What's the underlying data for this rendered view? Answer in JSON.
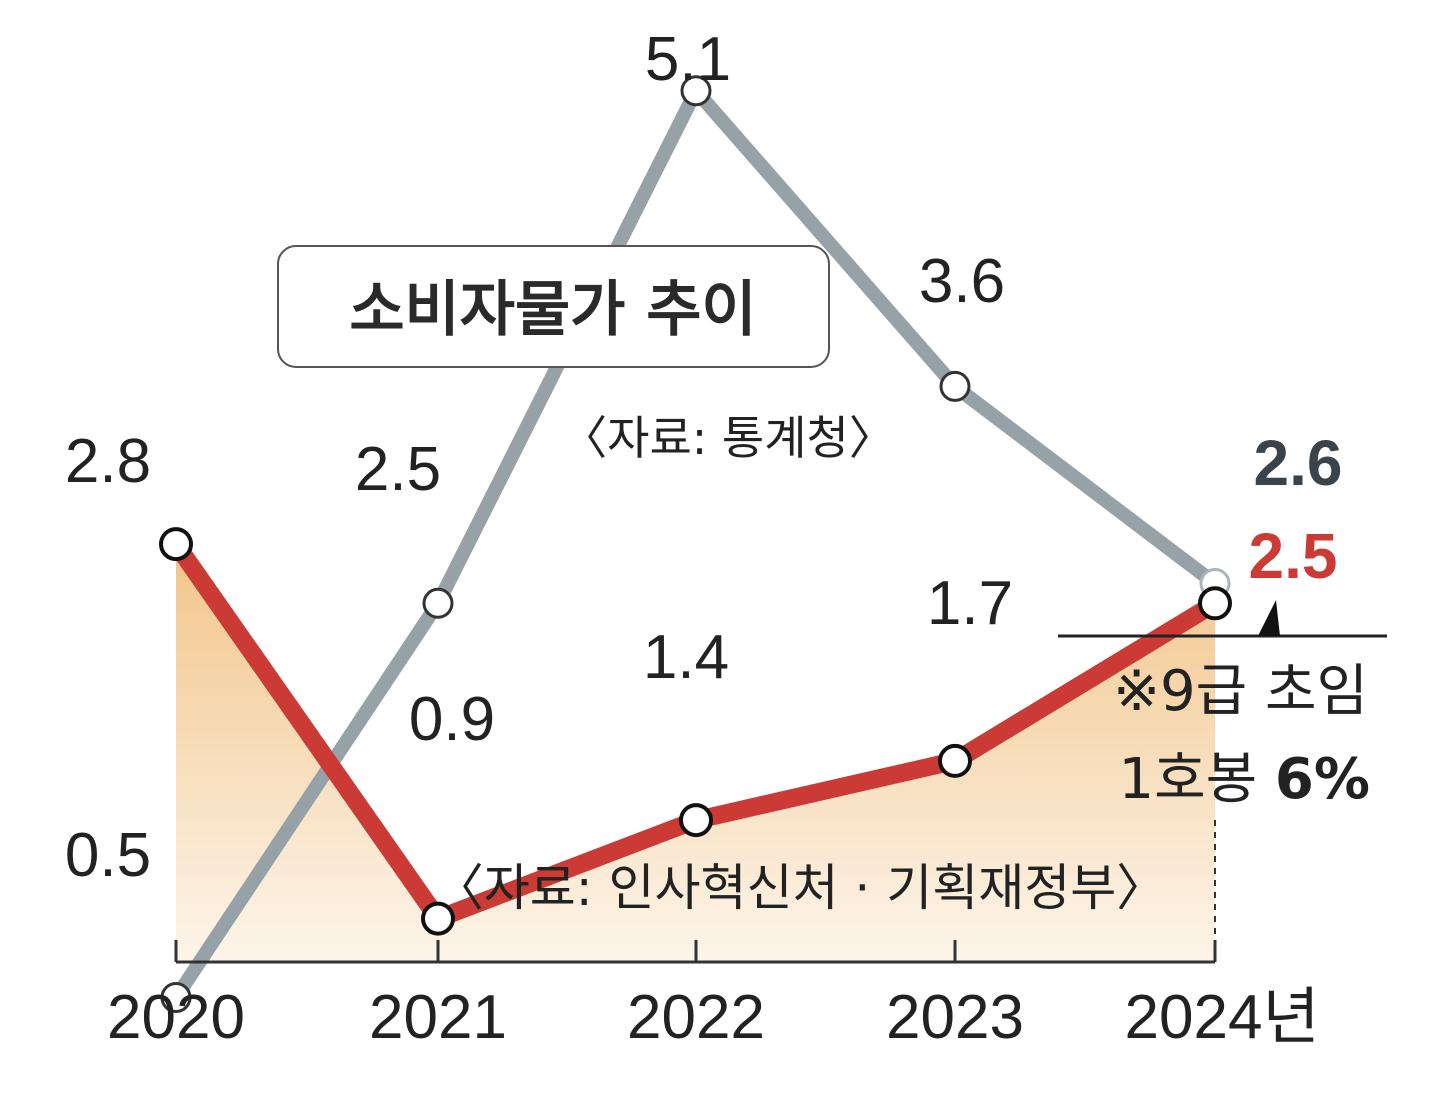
{
  "chart_data": {
    "type": "line",
    "categories": [
      "2020",
      "2021",
      "2022",
      "2023",
      "2024"
    ],
    "x_unit": "년",
    "ylim": [
      0,
      5.4
    ],
    "grid": false,
    "series": [
      {
        "values": [
          0.5,
          2.5,
          5.1,
          3.6,
          2.6
        ],
        "labels": [
          "0.5",
          "2.5",
          "5.1",
          "3.6",
          "2.6"
        ],
        "color": "#97a1a8",
        "label_color": "#3a434a",
        "fill": false
      },
      {
        "values": [
          2.8,
          0.9,
          1.4,
          1.7,
          2.5
        ],
        "labels": [
          "2.8",
          "0.9",
          "1.4",
          "1.7",
          "2.5"
        ],
        "color": "#cc3a36",
        "label_color": "#cc3a36",
        "fill": true
      }
    ],
    "title_box": "소비자물가 추이",
    "source_cpi": "〈자료: 통계청〉",
    "source_wage": "〈자료: 인사혁신처 · 기획재정부〉",
    "note": {
      "line1": "※9급 초임",
      "line2_prefix": "1호봉 ",
      "line2_value": "6%"
    },
    "colors": {
      "area_top": "#f2c58a",
      "area_bottom": "#fdf5ea",
      "text": "#222222",
      "axis": "#333333"
    }
  }
}
